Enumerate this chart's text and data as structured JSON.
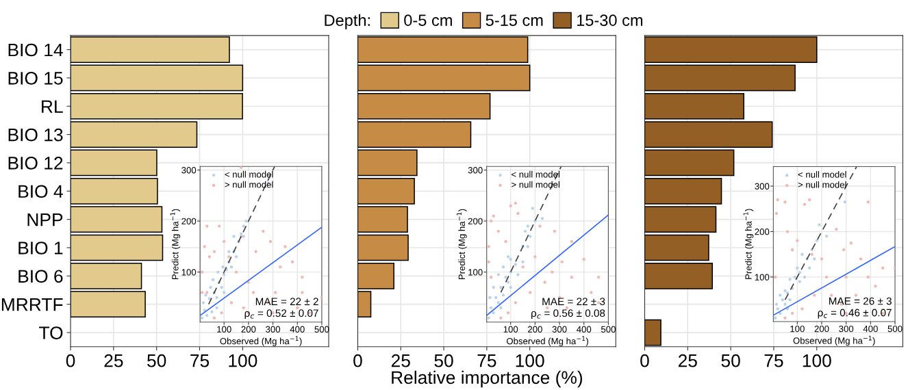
{
  "chart_data": [
    {
      "type": "bar",
      "orientation": "horizontal",
      "legend": "top",
      "legend_title": "Depth:",
      "grid": true,
      "categories": [
        "BIO 14",
        "BIO 15",
        "RL",
        "BIO 13",
        "BIO 12",
        "BIO 4",
        "NPP",
        "BIO 1",
        "BIO 6",
        "MRRTF",
        "TO"
      ],
      "series": [
        {
          "name": "0-5 cm",
          "color": "#e2c98c",
          "values": [
            92.3,
            100,
            99.9,
            73.4,
            50.1,
            50.5,
            53.1,
            53.5,
            41.2,
            43.4,
            null
          ]
        }
      ],
      "xlim": [
        0,
        150
      ],
      "xticks": [
        0,
        25,
        50,
        75,
        100
      ]
    },
    {
      "type": "scatter",
      "marker": "circle",
      "legend": "top left",
      "grid": true,
      "xlabel": "Observed (Mg ha$^{−1}$)",
      "ylabel": "Predict (Mg ha$^{−1}$)",
      "xlim": [
        2,
        500
      ],
      "ylim": [
        2,
        307
      ],
      "xticks": [
        100,
        200,
        300,
        400,
        500
      ],
      "yticks": [
        100,
        200,
        300
      ],
      "annotations": [
        "MAE = 22 ± 2",
        "ρ$_{c}$ = 0.52 ± 0.07"
      ],
      "series": [
        {
          "name": "> null model",
          "color": "#f2b8b4",
          "x": [
            10,
            20,
            30,
            40,
            60,
            80,
            100,
            120,
            150,
            170,
            200,
            180,
            220,
            200,
            280,
            290,
            310,
            330,
            350,
            380,
            420,
            420,
            400,
            450,
            500,
            130,
            90,
            60,
            30,
            10,
            170,
            260,
            230,
            300
          ],
          "values": [
            100,
            150,
            190,
            130,
            140,
            190,
            160,
            130,
            100,
            170,
            80,
            30,
            60,
            20,
            40,
            160,
            60,
            110,
            150,
            120,
            90,
            60,
            30,
            20,
            50,
            40,
            20,
            10,
            60,
            60,
            305,
            180,
            140,
            20
          ]
        },
        {
          "name": "< null model",
          "color": "#b9d3ea",
          "x": [
            10,
            20,
            30,
            40,
            50,
            60,
            70,
            80,
            90,
            100,
            110,
            120,
            130,
            140,
            150,
            160,
            170,
            180,
            190,
            15,
            25,
            45,
            55,
            75,
            95,
            120,
            140,
            180,
            280,
            70,
            100
          ],
          "values": [
            10,
            25,
            15,
            48,
            22,
            60,
            50,
            80,
            70,
            95,
            105,
            120,
            110,
            140,
            130,
            160,
            175,
            190,
            200,
            40,
            55,
            70,
            85,
            100,
            110,
            140,
            170,
            170,
            275,
            30,
            60
          ]
        },
        {
          "type": "line",
          "marker": "none",
          "line_style": "dashed",
          "color": "#404040",
          "x": [
            37,
            307
          ],
          "values": [
            37,
            307
          ]
        },
        {
          "type": "line",
          "marker": "none",
          "line_style": "solid",
          "color": "#3366ff",
          "x": [
            2,
            500
          ],
          "values": [
            15,
            188
          ]
        }
      ]
    },
    {
      "type": "bar",
      "orientation": "horizontal",
      "legend": "top",
      "grid": true,
      "tick_labels": "x",
      "xlabel": "Relative importance (%)",
      "categories": [
        null,
        null,
        null,
        null,
        null,
        null,
        null,
        null,
        null,
        null,
        null
      ],
      "series": [
        {
          "name": "5-15 cm",
          "color": "#c68b44",
          "values": [
            98.8,
            100,
            76.9,
            65.7,
            34.4,
            32.9,
            28.9,
            29.3,
            21.0,
            7.6,
            null
          ]
        }
      ],
      "xlim": [
        0,
        150
      ],
      "xticks": [
        0,
        25,
        50,
        75,
        100
      ]
    },
    {
      "type": "scatter",
      "marker": "circle",
      "legend": "top left",
      "grid": true,
      "xlabel": "Observed (Mg ha$^{−1}$)",
      "ylabel": "Predict (Mg ha$^{−1}$)",
      "xlim": [
        2,
        500
      ],
      "ylim": [
        2,
        307
      ],
      "xticks": [
        100,
        200,
        300,
        400,
        500
      ],
      "yticks": [
        100,
        200,
        300
      ],
      "annotations": [
        "MAE = 22 ± 3",
        "ρ$_{c}$ = 0.56 ± 0.08"
      ],
      "series": [
        {
          "name": "> null model",
          "color": "#f2b8b4",
          "x": [
            10,
            20,
            30,
            50,
            80,
            100,
            120,
            130,
            150,
            180,
            200,
            220,
            250,
            270,
            280,
            300,
            310,
            330,
            350,
            350,
            400,
            430,
            460,
            460,
            120,
            90,
            60,
            20,
            10,
            240
          ],
          "values": [
            150,
            200,
            210,
            180,
            160,
            230,
            235,
            215,
            110,
            60,
            130,
            190,
            30,
            100,
            180,
            50,
            120,
            30,
            160,
            90,
            125,
            60,
            90,
            40,
            40,
            20,
            10,
            90,
            120,
            80
          ]
        },
        {
          "name": "< null model",
          "color": "#b9d3ea",
          "x": [
            10,
            20,
            30,
            40,
            50,
            60,
            70,
            80,
            90,
            100,
            100,
            120,
            130,
            150,
            160,
            170,
            180,
            190,
            200,
            230,
            15,
            30,
            50,
            70,
            90,
            150,
            170,
            60,
            100
          ],
          "values": [
            10,
            30,
            20,
            50,
            40,
            70,
            55,
            90,
            80,
            100,
            125,
            115,
            95,
            150,
            180,
            190,
            170,
            225,
            200,
            205,
            50,
            70,
            95,
            110,
            130,
            120,
            150,
            30,
            70
          ]
        },
        {
          "type": "line",
          "marker": "none",
          "line_style": "dashed",
          "color": "#404040",
          "x": [
            60,
            307
          ],
          "values": [
            60,
            307
          ]
        },
        {
          "type": "line",
          "marker": "none",
          "line_style": "solid",
          "color": "#3366ff",
          "x": [
            2,
            500
          ],
          "values": [
            15,
            212
          ]
        }
      ]
    },
    {
      "type": "bar",
      "orientation": "horizontal",
      "legend": "top",
      "grid": true,
      "tick_labels": "x",
      "categories": [
        null,
        null,
        null,
        null,
        null,
        null,
        null,
        null,
        null,
        null,
        null
      ],
      "series": [
        {
          "name": "15-30 cm",
          "color": "#945f24",
          "values": [
            100,
            87.4,
            57.6,
            74.1,
            51.8,
            44.6,
            41.4,
            37.2,
            39.3,
            null,
            9.4
          ]
        }
      ],
      "xlim": [
        0,
        150
      ],
      "xticks": [
        0,
        25,
        50,
        75,
        100
      ]
    },
    {
      "type": "scatter",
      "marker": "circle",
      "legend": "top left",
      "grid": true,
      "xlabel": "Observed (Mg ha$^{−1}$)",
      "ylabel": "Predict (Mg ha$^{−1}$)",
      "xlim": [
        2,
        500
      ],
      "ylim": [
        2,
        343
      ],
      "xticks": [
        100,
        200,
        300,
        400,
        500
      ],
      "yticks": [
        100,
        200,
        300
      ],
      "annotations": [
        "MAE = 26 ± 3",
        "ρ$_{c}$ = 0.46 ± 0.07"
      ],
      "series": [
        {
          "name": "> null model",
          "color": "#f2b8b4",
          "x": [
            10,
            15,
            20,
            50,
            60,
            80,
            100,
            130,
            150,
            160,
            200,
            220,
            260,
            280,
            290,
            300,
            300,
            320,
            340,
            360,
            390,
            390,
            420,
            450,
            450,
            500,
            120,
            80,
            50,
            170,
            240
          ],
          "values": [
            100,
            240,
            270,
            265,
            200,
            160,
            180,
            260,
            270,
            150,
            140,
            100,
            205,
            40,
            160,
            20,
            100,
            175,
            60,
            140,
            100,
            265,
            80,
            120,
            20,
            120,
            30,
            20,
            10,
            60,
            60
          ]
        },
        {
          "name": "< null model",
          "color": "#b9d3ea",
          "x": [
            10,
            20,
            30,
            40,
            50,
            60,
            70,
            80,
            90,
            100,
            110,
            120,
            130,
            140,
            150,
            160,
            170,
            180,
            190,
            220,
            295,
            15,
            30,
            50,
            70,
            110,
            60
          ],
          "values": [
            10,
            30,
            20,
            50,
            40,
            65,
            50,
            75,
            100,
            120,
            110,
            150,
            100,
            140,
            120,
            160,
            140,
            180,
            215,
            190,
            265,
            40,
            60,
            70,
            95,
            90,
            30
          ]
        },
        {
          "type": "line",
          "marker": "none",
          "line_style": "dashed",
          "color": "#404040",
          "x": [
            50,
            343
          ],
          "values": [
            50,
            343
          ]
        },
        {
          "type": "line",
          "marker": "none",
          "line_style": "solid",
          "color": "#3366ff",
          "x": [
            2,
            500
          ],
          "values": [
            16,
            167
          ]
        }
      ]
    }
  ]
}
